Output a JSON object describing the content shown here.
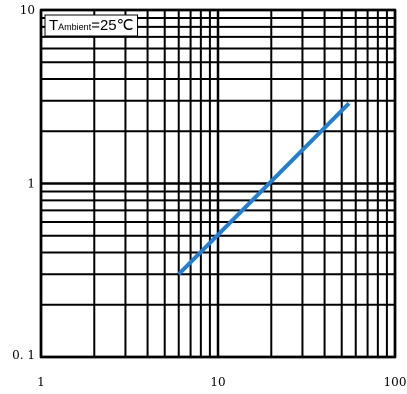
{
  "chart_data": {
    "type": "line",
    "x_scale": "log",
    "y_scale": "log",
    "xlim": [
      1,
      100
    ],
    "ylim": [
      0.1,
      10
    ],
    "x_ticks": [
      {
        "value": 1,
        "label": "1"
      },
      {
        "value": 10,
        "label": "10"
      },
      {
        "value": 100,
        "label": "100"
      }
    ],
    "y_ticks": [
      {
        "value": 0.1,
        "label": "0. 1"
      },
      {
        "value": 1,
        "label": "1"
      },
      {
        "value": 10,
        "label": "10"
      }
    ],
    "grid": true,
    "annotation": {
      "text_main": "T",
      "text_sub": "Ambient",
      "text_rest": "=25℃",
      "placement": "top-left"
    },
    "series": [
      {
        "color": "#1f7fd6",
        "x": [
          6,
          55
        ],
        "y": [
          0.3,
          2.9
        ]
      }
    ]
  }
}
